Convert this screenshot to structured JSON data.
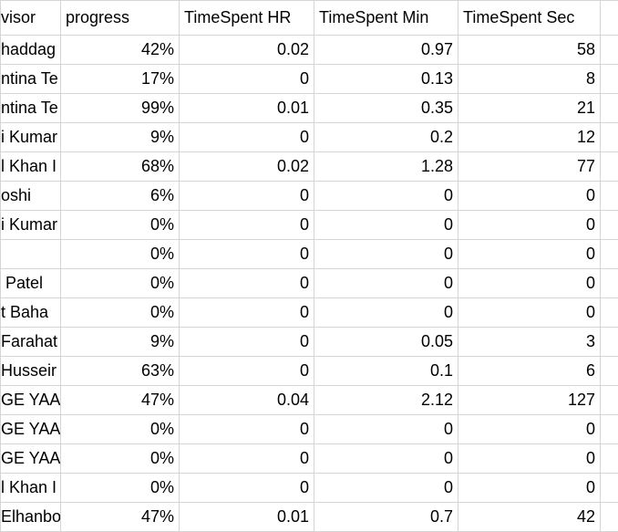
{
  "table": {
    "header": [
      "visor",
      "progress",
      "TimeSpent HR",
      "TimeSpent Min",
      "TimeSpent Sec"
    ],
    "rows": [
      [
        "haddag",
        "42%",
        0.02,
        0.97,
        58
      ],
      [
        "ntina Te",
        "17%",
        0,
        0.13,
        8
      ],
      [
        "ntina Te",
        "99%",
        0.01,
        0.35,
        21
      ],
      [
        "i Kumar",
        "9%",
        0,
        0.2,
        12
      ],
      [
        "l Khan I",
        "68%",
        0.02,
        1.28,
        77
      ],
      [
        "oshi",
        "6%",
        0,
        0,
        0
      ],
      [
        "i Kumar",
        "0%",
        0,
        0,
        0
      ],
      [
        null,
        "0%",
        0,
        0,
        0
      ],
      [
        " Patel",
        "0%",
        0,
        0,
        0
      ],
      [
        "t Baha",
        "0%",
        0,
        0,
        0
      ],
      [
        "Farahat",
        "9%",
        0,
        0.05,
        3
      ],
      [
        "Husseir",
        "63%",
        0,
        0.1,
        6
      ],
      [
        "GE YAA",
        "47%",
        0.04,
        2.12,
        127
      ],
      [
        "GE YAA",
        "0%",
        0,
        0,
        0
      ],
      [
        "GE YAA",
        "0%",
        0,
        0,
        0
      ],
      [
        "l Khan I",
        "0%",
        0,
        0,
        0
      ],
      [
        "Elhanbo",
        "47%",
        0.01,
        0.7,
        42
      ]
    ]
  }
}
